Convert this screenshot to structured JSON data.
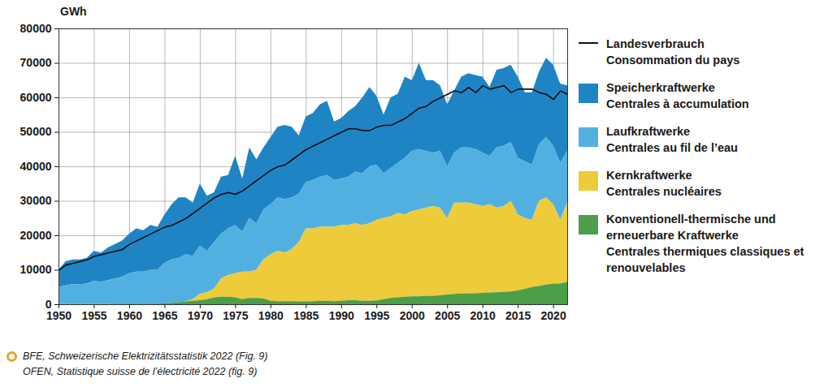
{
  "chart_data": {
    "type": "area",
    "stacked": true,
    "grid": true,
    "ylabel": "GWh",
    "caption": "BFE, Schweizerische Elektrizitätsstatistik 2022 (Fig. 9)\nOFEN, Statistique suisse de l’électricité 2022 (fig. 9)",
    "x": [
      1950,
      1951,
      1952,
      1953,
      1954,
      1955,
      1956,
      1957,
      1958,
      1959,
      1960,
      1961,
      1962,
      1963,
      1964,
      1965,
      1966,
      1967,
      1968,
      1969,
      1970,
      1971,
      1972,
      1973,
      1974,
      1975,
      1976,
      1977,
      1978,
      1979,
      1980,
      1981,
      1982,
      1983,
      1984,
      1985,
      1986,
      1987,
      1988,
      1989,
      1990,
      1991,
      1992,
      1993,
      1994,
      1995,
      1996,
      1997,
      1998,
      1999,
      2000,
      2001,
      2002,
      2003,
      2004,
      2005,
      2006,
      2007,
      2008,
      2009,
      2010,
      2011,
      2012,
      2013,
      2014,
      2015,
      2016,
      2017,
      2018,
      2019,
      2020,
      2021,
      2022
    ],
    "xlim": [
      1950,
      2022
    ],
    "xticks": [
      1950,
      1955,
      1960,
      1965,
      1970,
      1975,
      1980,
      1985,
      1990,
      1995,
      2000,
      2005,
      2010,
      2015,
      2020
    ],
    "ylim": [
      0,
      80000
    ],
    "yticks": [
      0,
      10000,
      20000,
      30000,
      40000,
      50000,
      60000,
      70000,
      80000
    ],
    "series": [
      {
        "name": "Landesverbrauch\nConsommation du pays",
        "type": "line",
        "color": "#111111",
        "values": [
          10000,
          11500,
          12000,
          12500,
          13000,
          14000,
          14500,
          15000,
          15500,
          16000,
          17500,
          18500,
          19500,
          20500,
          21500,
          22500,
          23000,
          24000,
          25000,
          26500,
          28000,
          29500,
          31000,
          32000,
          32500,
          32000,
          33000,
          34500,
          36000,
          37500,
          39000,
          40000,
          40500,
          42000,
          43500,
          45000,
          46000,
          47000,
          48000,
          49000,
          50000,
          51000,
          51000,
          50500,
          50500,
          51500,
          52000,
          52000,
          53000,
          54000,
          55500,
          57000,
          57500,
          59000,
          60000,
          61000,
          62000,
          61500,
          63000,
          61500,
          63500,
          62500,
          63000,
          63500,
          61500,
          62500,
          62500,
          62500,
          61500,
          61000,
          59500,
          62000,
          61000
        ]
      },
      {
        "name": "Speicherkraftwerke\nCentrales à accumulation",
        "type": "area",
        "color": "#1f84c4",
        "values": [
          5000,
          7000,
          7200,
          7200,
          7500,
          8700,
          8500,
          9500,
          10000,
          10500,
          11500,
          12500,
          12000,
          13000,
          12500,
          14000,
          16000,
          17500,
          16500,
          15500,
          18000,
          16000,
          14500,
          16500,
          15500,
          20000,
          15500,
          20500,
          18500,
          18000,
          19500,
          20500,
          21500,
          20500,
          17000,
          19000,
          19500,
          21000,
          21500,
          17000,
          17500,
          19000,
          19000,
          22000,
          23000,
          20000,
          17000,
          20500,
          20000,
          23500,
          20500,
          25000,
          20500,
          21000,
          19000,
          18000,
          18000,
          20500,
          21500,
          21500,
          22000,
          20000,
          22500,
          22500,
          22500,
          23500,
          20000,
          21000,
          21000,
          23000,
          23500,
          23000,
          19000
        ]
      },
      {
        "name": "Laufkraftwerke\nCentrales au fil de l’eau",
        "type": "area",
        "color": "#52b0e0",
        "values": [
          4900,
          5400,
          5700,
          5700,
          5900,
          6700,
          6400,
          6900,
          7300,
          7800,
          8800,
          9300,
          9300,
          9800,
          9800,
          11700,
          12600,
          12900,
          13700,
          12500,
          14000,
          12000,
          13500,
          13000,
          13500,
          14000,
          11500,
          15500,
          13500,
          14500,
          14500,
          15500,
          15500,
          15000,
          14000,
          13500,
          14000,
          14500,
          15000,
          13500,
          13500,
          14000,
          15000,
          15000,
          16500,
          16000,
          13000,
          14000,
          14500,
          16500,
          17500,
          17500,
          16500,
          15500,
          16500,
          15000,
          14500,
          16000,
          16000,
          16000,
          15500,
          14000,
          17500,
          17500,
          17000,
          16500,
          16500,
          16000,
          16500,
          17500,
          17000,
          16500,
          15000
        ]
      },
      {
        "name": "Kernkraftwerke\nCentrales nucléaires",
        "type": "area",
        "color": "#eecb3a",
        "values": [
          0,
          0,
          0,
          0,
          0,
          0,
          0,
          0,
          0,
          0,
          0,
          0,
          0,
          0,
          0,
          0,
          0,
          0,
          0,
          500,
          1800,
          2000,
          2500,
          5300,
          6300,
          7000,
          8000,
          7700,
          8200,
          11300,
          13500,
          14600,
          14100,
          15100,
          17200,
          21200,
          21100,
          21500,
          21500,
          21600,
          22000,
          21800,
          22300,
          22000,
          22500,
          23400,
          23500,
          23700,
          24500,
          23800,
          24700,
          25200,
          25600,
          26000,
          25400,
          22200,
          26500,
          26400,
          26300,
          25800,
          25200,
          25600,
          24500,
          24900,
          26300,
          22000,
          20500,
          19500,
          24700,
          25300,
          23000,
          18500,
          23000
        ]
      },
      {
        "name": "Konventionell-thermische und\nerneuerbare Kraftwerke\nCentrales thermiques classiques et\nrenouvelables",
        "type": "area",
        "color": "#4c9e48",
        "values": [
          100,
          100,
          100,
          100,
          100,
          100,
          100,
          100,
          200,
          200,
          200,
          200,
          200,
          200,
          200,
          300,
          400,
          600,
          800,
          1000,
          1200,
          1500,
          2000,
          2200,
          2200,
          2000,
          1500,
          1800,
          1800,
          1700,
          1000,
          900,
          900,
          900,
          800,
          800,
          900,
          1000,
          1000,
          900,
          1000,
          1200,
          1200,
          1000,
          1000,
          1100,
          1500,
          1800,
          2000,
          2200,
          2300,
          2300,
          2400,
          2500,
          2600,
          2800,
          3000,
          3100,
          3200,
          3200,
          3300,
          3400,
          3500,
          3600,
          3700,
          4000,
          4500,
          5000,
          5300,
          5700,
          6000,
          6000,
          6500
        ]
      }
    ]
  }
}
